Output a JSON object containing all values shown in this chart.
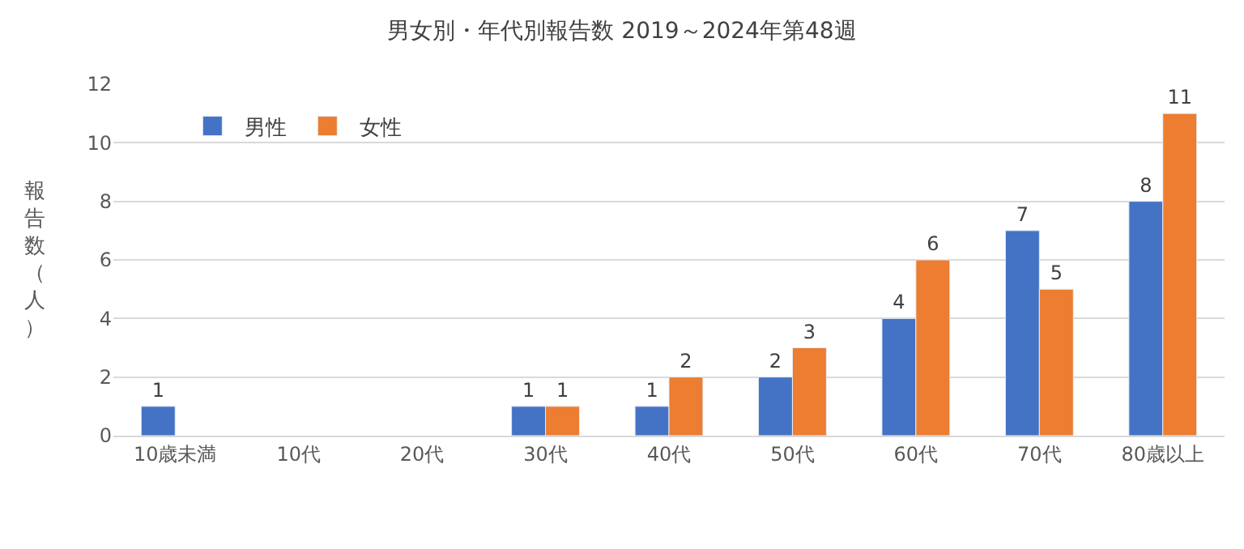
{
  "chart_data": {
    "type": "bar",
    "title": "男女別・年代別報告数 2019～2024年第48週",
    "ylabel": "報告数（人）",
    "categories": [
      "10歳未満",
      "10代",
      "20代",
      "30代",
      "40代",
      "50代",
      "60代",
      "70代",
      "80歳以上"
    ],
    "series": [
      {
        "name": "男性",
        "color": "#4472c4",
        "values": [
          1,
          null,
          null,
          1,
          1,
          2,
          4,
          7,
          8
        ]
      },
      {
        "name": "女性",
        "color": "#ed7d31",
        "values": [
          null,
          null,
          null,
          1,
          2,
          3,
          6,
          5,
          11
        ]
      }
    ],
    "ylim": [
      0,
      12
    ],
    "yticks": [
      0,
      2,
      4,
      6,
      8,
      10,
      12
    ],
    "grid": "y",
    "legend": "top left",
    "data_labels": true
  }
}
